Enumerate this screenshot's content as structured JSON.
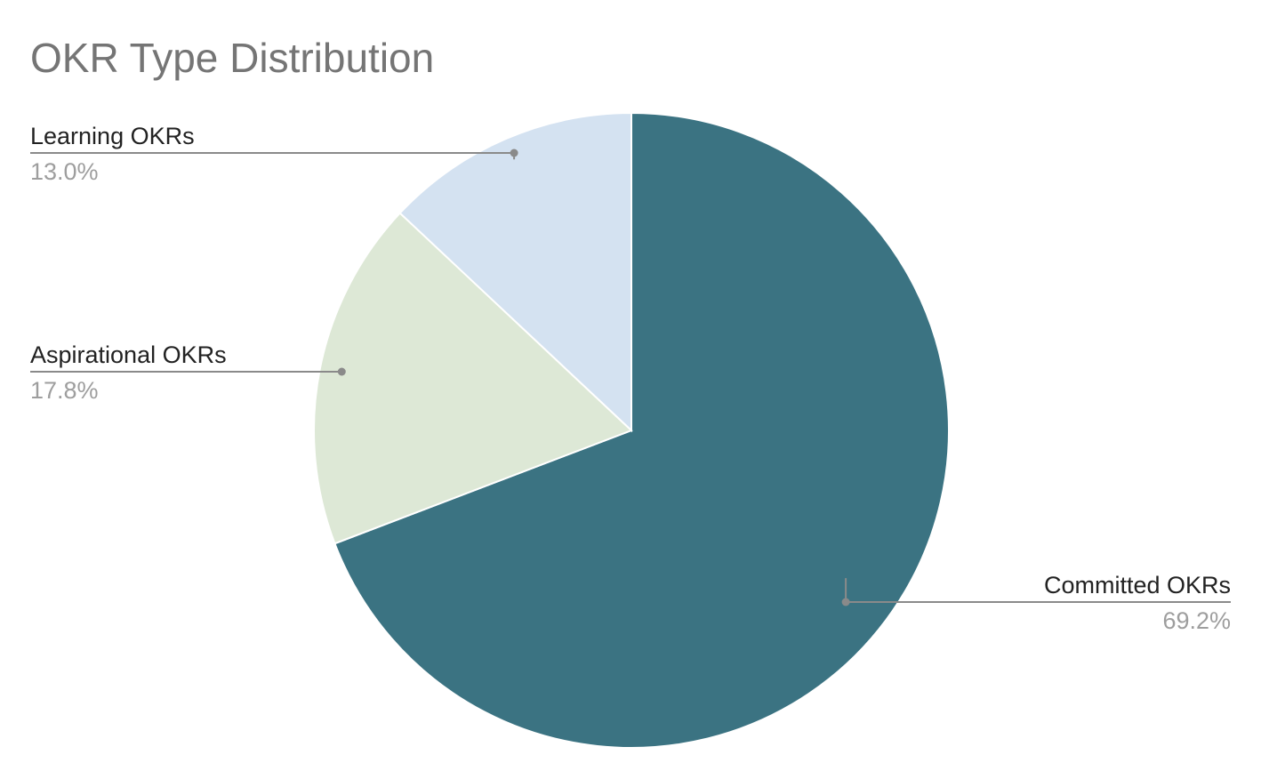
{
  "chart_data": {
    "type": "pie",
    "title": "OKR Type Distribution",
    "start_angle": "12 o'clock",
    "direction": "clockwise",
    "legend": "none",
    "slices": [
      {
        "name": "Committed OKRs",
        "value": 69.2,
        "label": "69.2%",
        "color": "#3b7382"
      },
      {
        "name": "Aspirational OKRs",
        "value": 17.8,
        "label": "17.8%",
        "color": "#dde8d6"
      },
      {
        "name": "Learning OKRs",
        "value": 13.0,
        "label": "13.0%",
        "color": "#d4e2f1"
      }
    ]
  }
}
